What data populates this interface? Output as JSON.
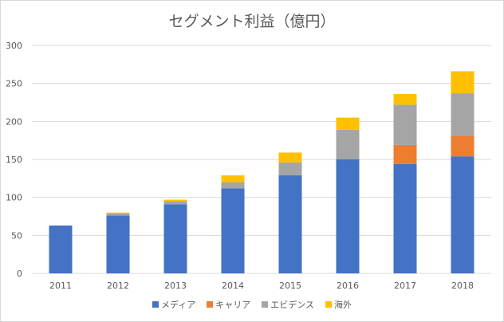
{
  "chart_data": {
    "type": "bar",
    "stacked": true,
    "title": "セグメント利益（億円）",
    "categories": [
      "2011",
      "2012",
      "2013",
      "2014",
      "2015",
      "2016",
      "2017",
      "2018"
    ],
    "series": [
      {
        "name": "メディア",
        "color": "#4472c4",
        "values": [
          63,
          76,
          91,
          112,
          129,
          150,
          144,
          154
        ]
      },
      {
        "name": "キャリア",
        "color": "#ed7d31",
        "values": [
          0,
          0,
          0,
          0,
          0,
          0,
          25,
          27
        ]
      },
      {
        "name": "エビデンス",
        "color": "#a5a5a5",
        "values": [
          0,
          3,
          4,
          8,
          17,
          39,
          53,
          56
        ]
      },
      {
        "name": "海外",
        "color": "#ffc000",
        "values": [
          0,
          1,
          2,
          9,
          13,
          16,
          14,
          29
        ]
      }
    ],
    "yticks": [
      0,
      50,
      100,
      150,
      200,
      250,
      300
    ],
    "ylim": [
      0,
      300
    ],
    "grid": true,
    "legend_position": "bottom"
  }
}
